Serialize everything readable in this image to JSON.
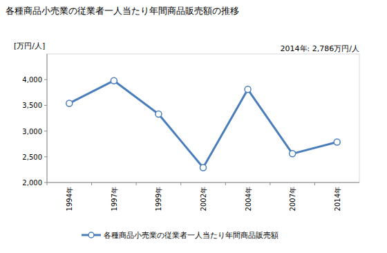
{
  "chart_data": {
    "type": "line",
    "title": "各種商品小売業の従業者一人当たり年間商品販売額の推移",
    "y_label": "[万円/人]",
    "annotation": "2014年: 2,786万円/人",
    "categories": [
      "1994年",
      "1997年",
      "1999年",
      "2002年",
      "2004年",
      "2007年",
      "2014年"
    ],
    "series": [
      {
        "name": "各種商品小売業の従業者一人当たり年間商品販売額",
        "color": "#4a7ebb",
        "marker": "circle",
        "line_style": "solid",
        "values": [
          3540,
          3980,
          3330,
          2290,
          3810,
          2560,
          2786
        ]
      }
    ],
    "ylim": [
      2000,
      4500
    ],
    "yticks": [
      {
        "value": 2000,
        "label": "2,000"
      },
      {
        "value": 2500,
        "label": "2,500"
      },
      {
        "value": 3000,
        "label": "3,000"
      },
      {
        "value": 3500,
        "label": "3,500"
      },
      {
        "value": 4000,
        "label": "4,000"
      }
    ],
    "grid": false,
    "legend": "bottom"
  }
}
